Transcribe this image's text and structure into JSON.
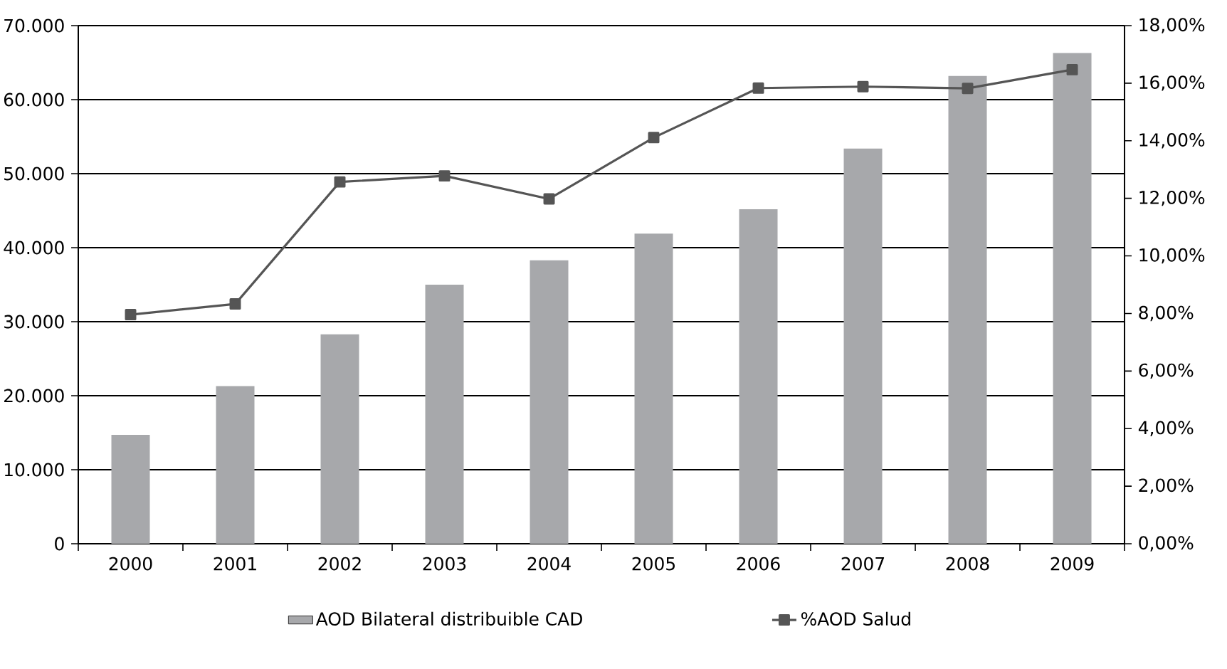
{
  "chart_data": {
    "type": "bar",
    "categories": [
      "2000",
      "2001",
      "2002",
      "2003",
      "2004",
      "2005",
      "2006",
      "2007",
      "2008",
      "2009"
    ],
    "series": [
      {
        "name": "AOD Bilateral distribuible CAD",
        "color": "#a7a8ab",
        "values": [
          14700,
          21300,
          28300,
          35000,
          38300,
          41900,
          45200,
          53400,
          63200,
          66300
        ]
      },
      {
        "name": "%AOD Salud",
        "type": "line",
        "axis": "y2",
        "color": "#555555",
        "marker": "square",
        "values": [
          7.96,
          8.33,
          12.57,
          12.78,
          11.98,
          14.11,
          15.83,
          15.88,
          15.82,
          16.47
        ]
      }
    ],
    "ylim": [
      0,
      70000
    ],
    "yticks": [
      {
        "value": 0,
        "label": "0"
      },
      {
        "value": 10000,
        "label": "10.000"
      },
      {
        "value": 20000,
        "label": "20.000"
      },
      {
        "value": 30000,
        "label": "30.000"
      },
      {
        "value": 40000,
        "label": "40.000"
      },
      {
        "value": 50000,
        "label": "50.000"
      },
      {
        "value": 60000,
        "label": "60.000"
      },
      {
        "value": 70000,
        "label": "70.000"
      }
    ],
    "y2lim": [
      0,
      18
    ],
    "y2ticks": [
      {
        "value": 0,
        "label": "0,00%"
      },
      {
        "value": 2,
        "label": "2,00%"
      },
      {
        "value": 4,
        "label": "4,00%"
      },
      {
        "value": 6,
        "label": "6,00%"
      },
      {
        "value": 8,
        "label": "8,00%"
      },
      {
        "value": 10,
        "label": "10,00%"
      },
      {
        "value": 12,
        "label": "12,00%"
      },
      {
        "value": 14,
        "label": "14,00%"
      },
      {
        "value": 16,
        "label": "16,00%"
      },
      {
        "value": 18,
        "label": "18,00%"
      }
    ],
    "grid": "y",
    "legend": "bottom"
  }
}
